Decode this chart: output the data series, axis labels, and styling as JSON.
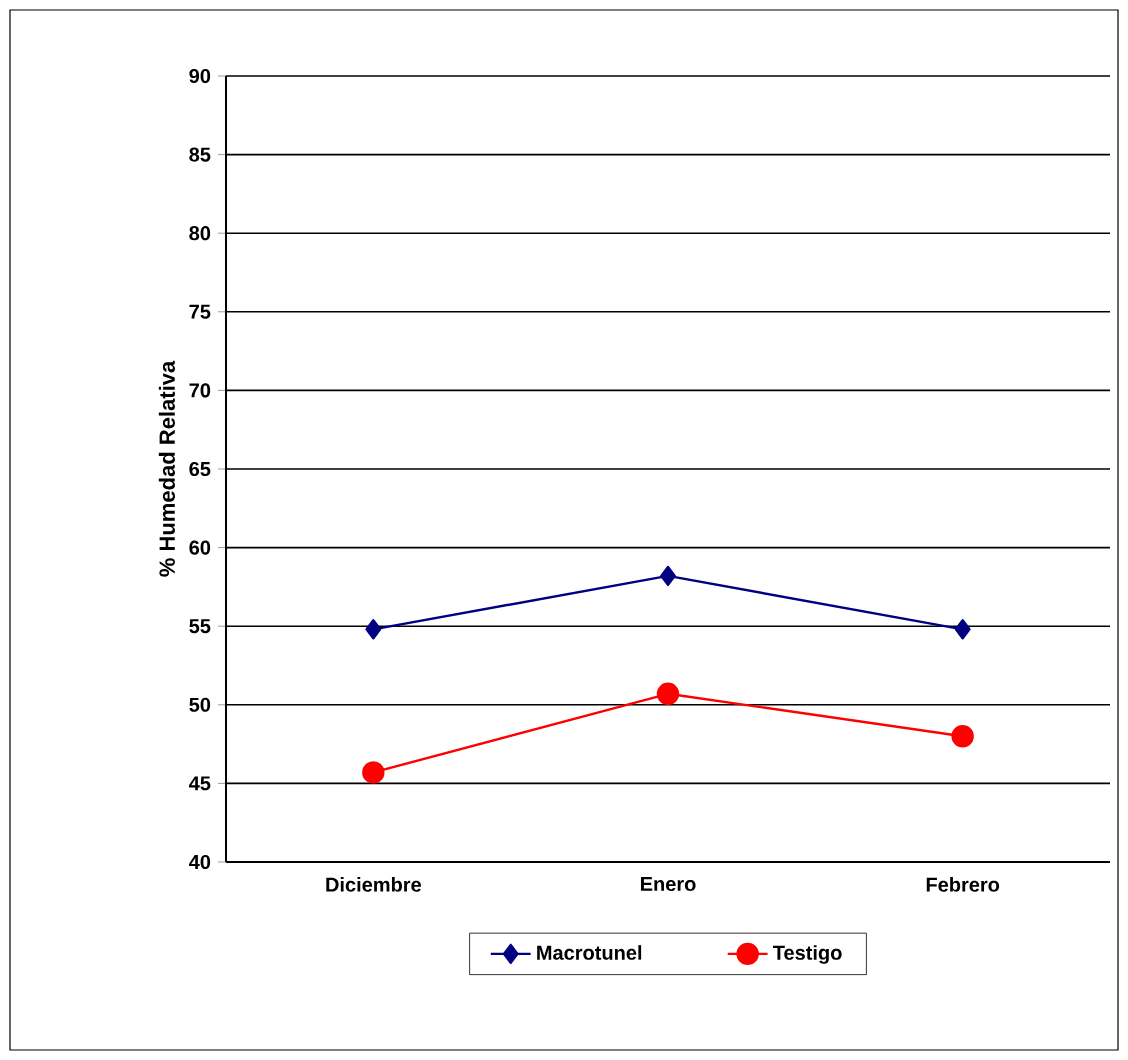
{
  "chart_data": {
    "type": "line",
    "ylabel": "% Humedad Relativa",
    "categories": [
      "Diciembre",
      "Enero",
      "Febrero"
    ],
    "series": [
      {
        "name": "Macrotunel",
        "color": "#000080",
        "marker": "diamond",
        "values": [
          54.8,
          58.2,
          54.8
        ]
      },
      {
        "name": "Testigo",
        "color": "#ff0000",
        "marker": "circle",
        "values": [
          45.7,
          50.7,
          48.0
        ]
      }
    ],
    "ylim": [
      40,
      90
    ],
    "yticks": [
      40,
      45,
      50,
      55,
      60,
      65,
      70,
      75,
      80,
      85,
      90
    ],
    "grid": "y",
    "legend": "bottom",
    "line_style": "solid"
  }
}
